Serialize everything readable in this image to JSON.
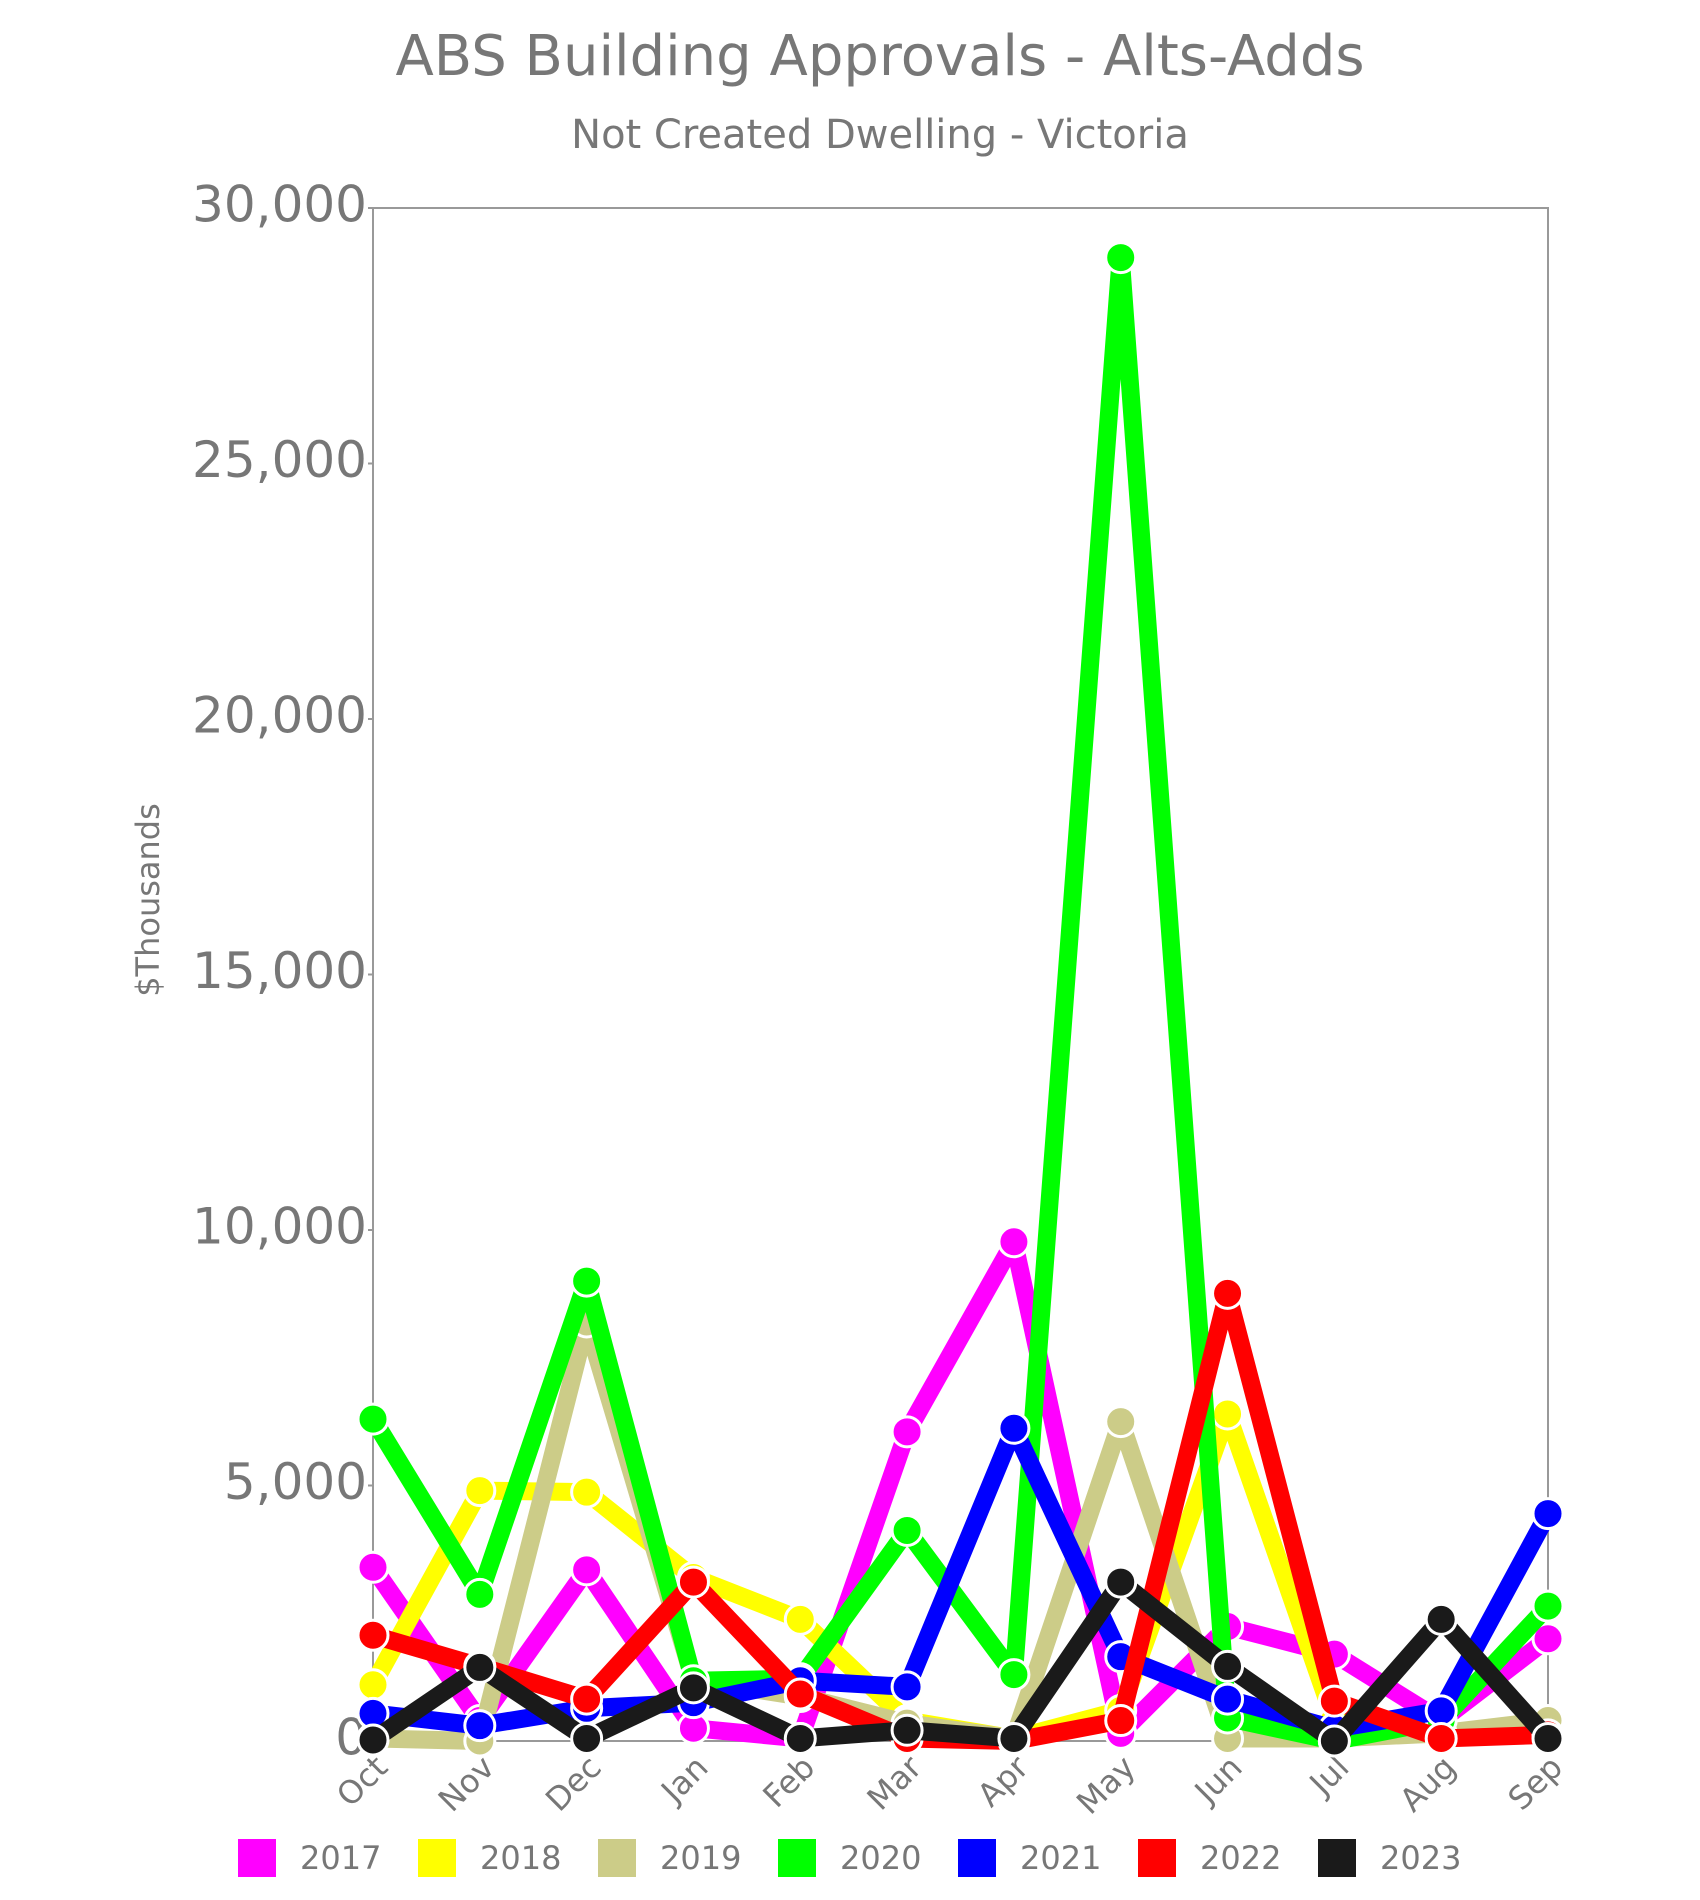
{
  "chart_data": {
    "type": "line",
    "title": "ABS Building Approvals - Alts-Adds",
    "subtitle": "Not Created Dwelling - Victoria",
    "y_label": "$Thousands",
    "categories": [
      "Oct",
      "Nov",
      "Dec",
      "Jan",
      "Feb",
      "Mar",
      "Apr",
      "May",
      "Jun",
      "Jul",
      "Aug",
      "Sep"
    ],
    "ylim": [
      0,
      30000
    ],
    "yticks": [
      0,
      {
        "value": 5000,
        "label": "5,000"
      },
      {
        "value": 10000,
        "label": "10,000"
      },
      {
        "value": 15000,
        "label": "15,000"
      },
      {
        "value": 20000,
        "label": "20,000"
      },
      {
        "value": 25000,
        "label": "25,000"
      },
      {
        "value": 30000,
        "label": "30,000"
      }
    ],
    "grid": false,
    "legend": "bottom",
    "series": [
      {
        "name": "2017",
        "color": "#ff00ff",
        "values": [
          3400,
          400,
          3350,
          250,
          50,
          6050,
          9770,
          150,
          2240,
          1700,
          400,
          2000
        ]
      },
      {
        "name": "2018",
        "color": "#ffff00",
        "values": [
          1100,
          4900,
          4870,
          3200,
          2380,
          400,
          50,
          600,
          6400,
          400,
          150,
          250
        ]
      },
      {
        "name": "2019",
        "color": "#cccc88",
        "values": [
          50,
          0,
          8200,
          1200,
          870,
          350,
          50,
          6250,
          50,
          50,
          150,
          400
        ]
      },
      {
        "name": "2020",
        "color": "#00ff00",
        "values": [
          6300,
          2870,
          9000,
          1180,
          1220,
          4120,
          1300,
          29030,
          450,
          0,
          400,
          2640
        ]
      },
      {
        "name": "2021",
        "color": "#0000ff",
        "values": [
          540,
          300,
          640,
          750,
          1180,
          1060,
          6120,
          1650,
          820,
          240,
          590,
          4450
        ]
      },
      {
        "name": "2022",
        "color": "#ff0000",
        "values": [
          2070,
          1460,
          820,
          3110,
          920,
          50,
          0,
          400,
          8760,
          780,
          50,
          120
        ]
      },
      {
        "name": "2023",
        "color": "#1a1a1a",
        "values": [
          20,
          1440,
          50,
          1040,
          50,
          210,
          50,
          3110,
          1460,
          0,
          2380,
          50
        ]
      }
    ]
  }
}
